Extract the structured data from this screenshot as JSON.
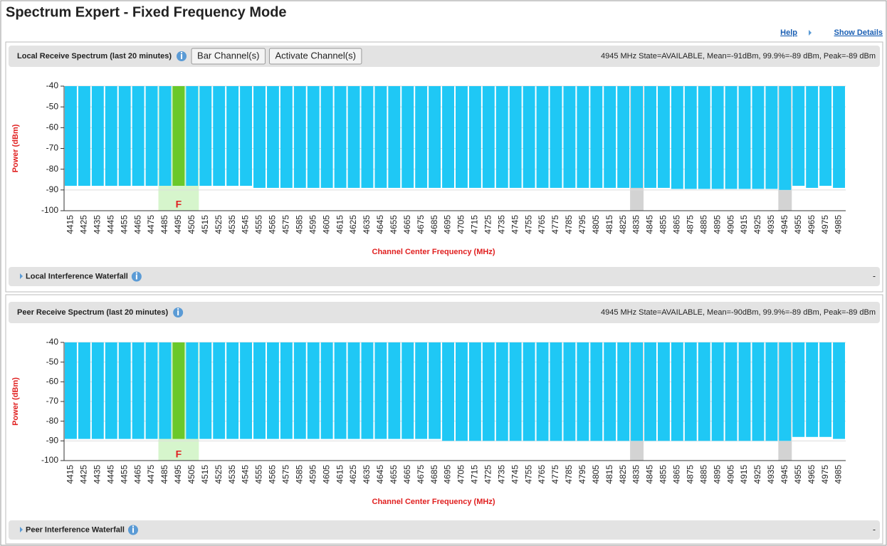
{
  "header": {
    "title": "Spectrum Expert - Fixed Frequency Mode",
    "links": [
      "Help",
      "Show Details"
    ]
  },
  "panels": [
    {
      "title": "Local Receive Spectrum (last 20 minutes)",
      "buttons": [
        "Bar Channel(s)",
        "Activate Channel(s)"
      ],
      "status": "4945 MHz State=AVAILABLE, Mean=-91dBm, 99.9%=-89 dBm, Peak=-89 dBm",
      "waterfall": "Local Interference Waterfall",
      "collapse": "-",
      "chart": {
        "type": "bar",
        "ylabel": "Power (dBm)",
        "xlabel": "Channel Center Frequency (MHz)",
        "categories": [
          4415,
          4425,
          4435,
          4445,
          4455,
          4465,
          4475,
          4485,
          4495,
          4505,
          4515,
          4525,
          4535,
          4545,
          4555,
          4565,
          4575,
          4585,
          4595,
          4605,
          4615,
          4625,
          4635,
          4645,
          4655,
          4665,
          4675,
          4685,
          4695,
          4705,
          4715,
          4725,
          4735,
          4745,
          4755,
          4765,
          4775,
          4785,
          4795,
          4805,
          4815,
          4825,
          4835,
          4845,
          4855,
          4865,
          4875,
          4885,
          4895,
          4905,
          4915,
          4925,
          4935,
          4945,
          4955,
          4965,
          4975,
          4985
        ],
        "values": [
          -88,
          -88,
          -88,
          -88,
          -88,
          -88,
          -88,
          -88,
          -88,
          -88,
          -88,
          -88,
          -88,
          -88,
          -89,
          -89,
          -89,
          -89,
          -89,
          -89,
          -89,
          -89,
          -89,
          -89,
          -89,
          -89,
          -89,
          -89,
          -89,
          -89,
          -89,
          -89,
          -89,
          -89,
          -89,
          -89,
          -89,
          -89,
          -89,
          -89,
          -89,
          -89,
          -89,
          -89,
          -89,
          -89.5,
          -89.5,
          -89.5,
          -89.5,
          -89.5,
          -89.5,
          -89.5,
          -89.5,
          -90,
          -88,
          -89,
          -88,
          -89
        ],
        "color": "#1fc8f5",
        "ylim": [
          -100,
          -40
        ],
        "yticks": [
          -40,
          -50,
          -60,
          -70,
          -80,
          -90,
          -100
        ],
        "grid": true,
        "active_channel": 4495,
        "active_color": "#6ac82a",
        "active_marker": "F",
        "active_band": [
          4485,
          4505
        ],
        "active_band_color": "#d6f5cc",
        "barred_channels": [
          4835,
          4945
        ],
        "barred_color": "#d3d3d3"
      }
    },
    {
      "title": "Peer Receive Spectrum (last 20 minutes)",
      "status": "4945 MHz State=AVAILABLE, Mean=-90dBm, 99.9%=-89 dBm, Peak=-89 dBm",
      "waterfall": "Peer Interference Waterfall",
      "collapse": "-",
      "chart": {
        "type": "bar",
        "ylabel": "Power (dBm)",
        "xlabel": "Channel Center Frequency (MHz)",
        "categories": [
          4415,
          4425,
          4435,
          4445,
          4455,
          4465,
          4475,
          4485,
          4495,
          4505,
          4515,
          4525,
          4535,
          4545,
          4555,
          4565,
          4575,
          4585,
          4595,
          4605,
          4615,
          4625,
          4635,
          4645,
          4655,
          4665,
          4675,
          4685,
          4695,
          4705,
          4715,
          4725,
          4735,
          4745,
          4755,
          4765,
          4775,
          4785,
          4795,
          4805,
          4815,
          4825,
          4835,
          4845,
          4855,
          4865,
          4875,
          4885,
          4895,
          4905,
          4915,
          4925,
          4935,
          4945,
          4955,
          4965,
          4975,
          4985
        ],
        "values": [
          -89,
          -89,
          -89,
          -89,
          -89,
          -89,
          -89,
          -89,
          -89,
          -89,
          -89,
          -89,
          -89,
          -89,
          -89,
          -89,
          -89,
          -89,
          -89,
          -89,
          -89,
          -89,
          -89,
          -89,
          -89,
          -89,
          -89,
          -89,
          -90,
          -90,
          -90,
          -90,
          -90,
          -90,
          -90,
          -90,
          -90,
          -90,
          -90,
          -90,
          -90,
          -90,
          -90,
          -90,
          -90,
          -90,
          -90,
          -90,
          -90,
          -90,
          -90,
          -90,
          -90,
          -90,
          -88,
          -88,
          -88,
          -89
        ],
        "color": "#1fc8f5",
        "ylim": [
          -100,
          -40
        ],
        "yticks": [
          -40,
          -50,
          -60,
          -70,
          -80,
          -90,
          -100
        ],
        "grid": true,
        "active_channel": 4495,
        "active_color": "#6ac82a",
        "active_marker": "F",
        "active_band": [
          4485,
          4505
        ],
        "active_band_color": "#d6f5cc",
        "barred_channels": [
          4835,
          4945
        ],
        "barred_color": "#d3d3d3"
      }
    }
  ]
}
